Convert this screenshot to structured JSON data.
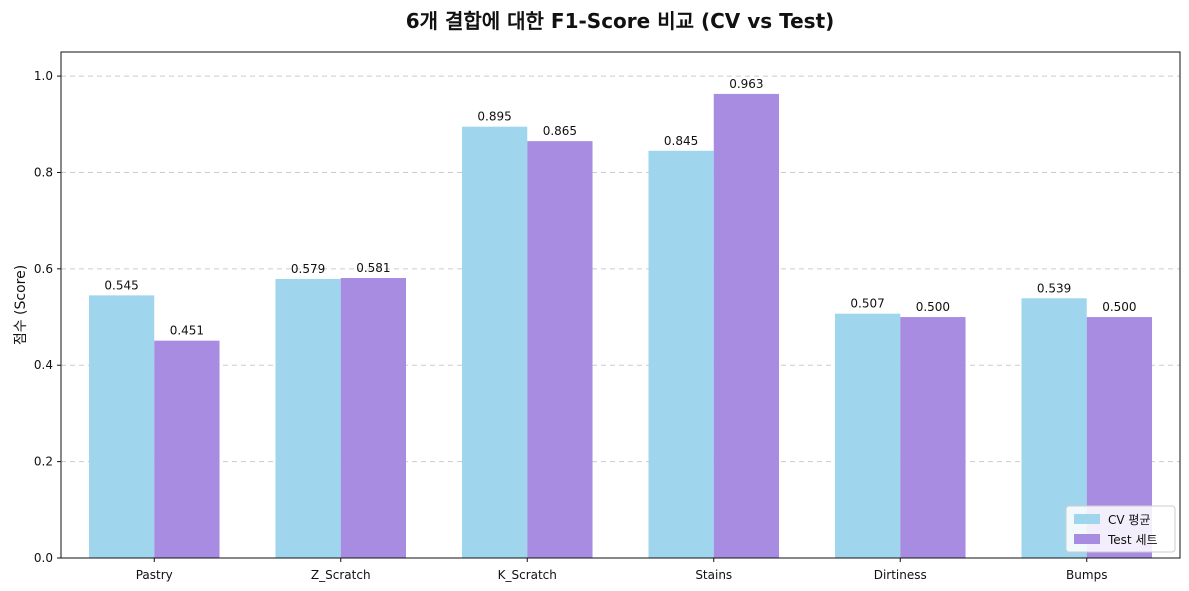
{
  "chart_data": {
    "type": "bar",
    "title": "6개 결합에 대한 F1-Score 비교 (CV vs Test)",
    "xlabel": "",
    "ylabel": "점수 (Score)",
    "ylim": [
      0,
      1.05
    ],
    "yticks": [
      "0.0",
      "0.2",
      "0.4",
      "0.6",
      "0.8",
      "1.0"
    ],
    "grid": "y dashed",
    "legend_position": "lower-right",
    "categories": [
      "Pastry",
      "Z_Scratch",
      "K_Scratch",
      "Stains",
      "Dirtiness",
      "Bumps"
    ],
    "series": [
      {
        "name": "CV 평균",
        "color": "#9fd6ee",
        "values": [
          0.545,
          0.579,
          0.895,
          0.845,
          0.507,
          0.539
        ],
        "labels": [
          "0.545",
          "0.579",
          "0.895",
          "0.845",
          "0.507",
          "0.539"
        ]
      },
      {
        "name": "Test 세트",
        "color": "#a88ce2",
        "values": [
          0.451,
          0.581,
          0.865,
          0.963,
          0.5,
          0.5
        ],
        "labels": [
          "0.451",
          "0.581",
          "0.865",
          "0.963",
          "0.500",
          "0.500"
        ]
      }
    ]
  }
}
